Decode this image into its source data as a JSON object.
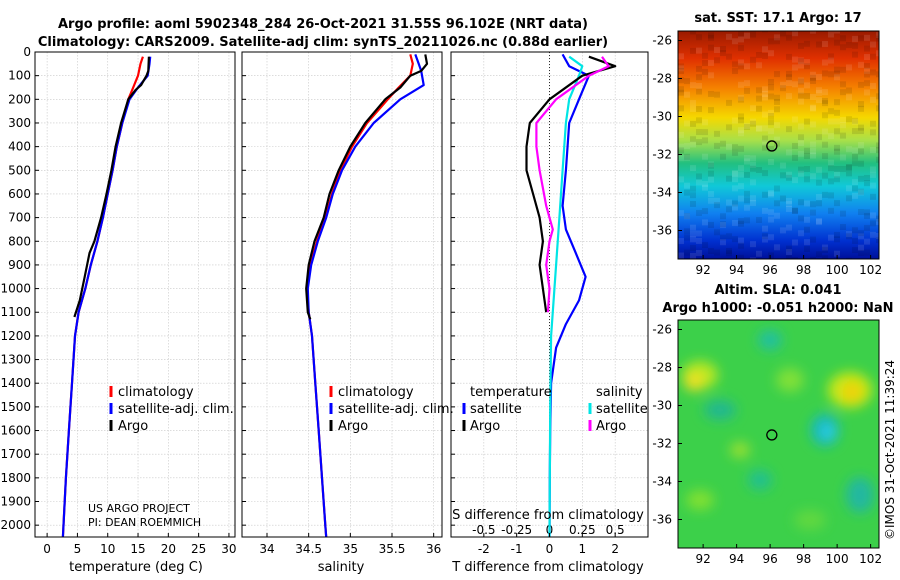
{
  "header": {
    "line1": "Argo profile: aoml 5902348_284 26-Oct-2021 31.55S 96.102E (NRT data)",
    "line2": "Climatology: CARS2009. Satellite-adj clim: synTS_20211026.nc (0.88d earlier)"
  },
  "colors": {
    "argo": "#000000",
    "climatology": "#ff0000",
    "satellite": "#0000ff",
    "salinity_sat": "#00e5e5",
    "salinity_argo": "#ff00ff",
    "grid": "#c8c8c8"
  },
  "credits": {
    "project": "US ARGO PROJECT",
    "pi": "PI: DEAN ROEMMICH"
  },
  "watermark": "©IMOS 31-Oct-2021 11:39:24",
  "chart_data": [
    {
      "id": "temperature",
      "type": "line",
      "xlabel": "temperature (deg C)",
      "xlim": [
        -2,
        31
      ],
      "xticks": [
        0,
        5,
        10,
        15,
        20,
        25,
        30
      ],
      "ylim": [
        2050,
        0
      ],
      "yticks": [
        0,
        100,
        200,
        300,
        400,
        500,
        600,
        700,
        800,
        900,
        1000,
        1100,
        1200,
        1300,
        1400,
        1500,
        1600,
        1700,
        1800,
        1900,
        2000
      ],
      "legend": [
        "climatology",
        "satellite-adj. clim.",
        "Argo"
      ],
      "series": [
        {
          "name": "climatology",
          "color": "#ff0000",
          "points": [
            [
              15.8,
              20
            ],
            [
              15.4,
              50
            ],
            [
              15.0,
              100
            ],
            [
              14.2,
              150
            ],
            [
              13.4,
              200
            ],
            [
              12.4,
              300
            ],
            [
              11.5,
              400
            ],
            [
              10.8,
              500
            ],
            [
              10.0,
              600
            ],
            [
              9.2,
              700
            ],
            [
              8.3,
              800
            ],
            [
              7.2,
              900
            ],
            [
              6.3,
              1000
            ],
            [
              5.2,
              1100
            ],
            [
              4.6,
              1200
            ],
            [
              4.1,
              1400
            ],
            [
              3.6,
              1600
            ],
            [
              3.1,
              1800
            ],
            [
              2.7,
              2000
            ],
            [
              2.6,
              2050
            ]
          ]
        },
        {
          "name": "satellite-adj. clim.",
          "color": "#0000ff",
          "points": [
            [
              17.0,
              20
            ],
            [
              16.9,
              50
            ],
            [
              16.6,
              100
            ],
            [
              15.0,
              150
            ],
            [
              13.6,
              200
            ],
            [
              12.4,
              300
            ],
            [
              11.5,
              400
            ],
            [
              10.8,
              500
            ],
            [
              10.0,
              600
            ],
            [
              9.2,
              700
            ],
            [
              8.3,
              800
            ],
            [
              7.2,
              900
            ],
            [
              6.3,
              1000
            ],
            [
              5.2,
              1100
            ],
            [
              4.6,
              1200
            ],
            [
              4.1,
              1400
            ],
            [
              3.6,
              1600
            ],
            [
              3.1,
              1800
            ],
            [
              2.7,
              2000
            ],
            [
              2.6,
              2050
            ]
          ]
        },
        {
          "name": "Argo",
          "color": "#000000",
          "points": [
            [
              16.8,
              20
            ],
            [
              16.7,
              80
            ],
            [
              16.4,
              100
            ],
            [
              15.5,
              140
            ],
            [
              14.6,
              160
            ],
            [
              13.4,
              200
            ],
            [
              12.2,
              300
            ],
            [
              11.3,
              400
            ],
            [
              10.6,
              500
            ],
            [
              9.8,
              600
            ],
            [
              8.9,
              700
            ],
            [
              7.8,
              800
            ],
            [
              7.0,
              850
            ],
            [
              6.2,
              950
            ],
            [
              5.4,
              1050
            ],
            [
              4.5,
              1120
            ]
          ]
        }
      ]
    },
    {
      "id": "salinity",
      "type": "line",
      "xlabel": "salinity",
      "xlim": [
        33.7,
        36.1
      ],
      "xticks": [
        34,
        34.5,
        35,
        35.5,
        36
      ],
      "ylim": [
        2050,
        0
      ],
      "legend": [
        "climatology",
        "satellite-adj. clim.",
        "Argo"
      ],
      "series": [
        {
          "name": "climatology",
          "color": "#ff0000",
          "points": [
            [
              35.72,
              10
            ],
            [
              35.75,
              50
            ],
            [
              35.72,
              100
            ],
            [
              35.58,
              150
            ],
            [
              35.45,
              200
            ],
            [
              35.2,
              300
            ],
            [
              35.02,
              400
            ],
            [
              34.88,
              500
            ],
            [
              34.78,
              600
            ],
            [
              34.7,
              700
            ],
            [
              34.6,
              800
            ],
            [
              34.52,
              900
            ],
            [
              34.48,
              1000
            ],
            [
              34.5,
              1100
            ],
            [
              34.54,
              1200
            ],
            [
              34.58,
              1400
            ],
            [
              34.62,
              1600
            ],
            [
              34.66,
              1800
            ],
            [
              34.7,
              2000
            ],
            [
              34.71,
              2050
            ]
          ]
        },
        {
          "name": "satellite-adj. clim.",
          "color": "#0000ff",
          "points": [
            [
              35.78,
              10
            ],
            [
              35.82,
              50
            ],
            [
              35.85,
              80
            ],
            [
              35.88,
              140
            ],
            [
              35.6,
              200
            ],
            [
              35.28,
              300
            ],
            [
              35.06,
              400
            ],
            [
              34.9,
              500
            ],
            [
              34.79,
              600
            ],
            [
              34.71,
              700
            ],
            [
              34.61,
              800
            ],
            [
              34.53,
              900
            ],
            [
              34.49,
              1000
            ],
            [
              34.5,
              1100
            ],
            [
              34.54,
              1200
            ],
            [
              34.58,
              1400
            ],
            [
              34.62,
              1600
            ],
            [
              34.66,
              1800
            ],
            [
              34.7,
              2000
            ],
            [
              34.71,
              2050
            ]
          ]
        },
        {
          "name": "Argo",
          "color": "#000000",
          "points": [
            [
              35.9,
              10
            ],
            [
              35.92,
              50
            ],
            [
              35.85,
              80
            ],
            [
              35.72,
              100
            ],
            [
              35.6,
              150
            ],
            [
              35.42,
              200
            ],
            [
              35.18,
              300
            ],
            [
              35.0,
              400
            ],
            [
              34.86,
              500
            ],
            [
              34.75,
              600
            ],
            [
              34.68,
              700
            ],
            [
              34.57,
              800
            ],
            [
              34.5,
              900
            ],
            [
              34.47,
              1000
            ],
            [
              34.49,
              1100
            ],
            [
              34.52,
              1130
            ]
          ]
        }
      ]
    },
    {
      "id": "difference",
      "type": "line",
      "xlabel": "T difference from climatology",
      "xlabel2": "S difference from climatology",
      "xlim": [
        -3,
        3
      ],
      "xticks": [
        -2,
        -1,
        0,
        1,
        2
      ],
      "xticks2": [
        -0.5,
        -0.25,
        0,
        0.25,
        0.5
      ],
      "ylim": [
        2050,
        0
      ],
      "legend_temperature": {
        "title": "temperature",
        "items": [
          "satellite",
          "Argo"
        ]
      },
      "legend_salinity": {
        "title": "salinity",
        "items": [
          "satellite",
          "Argo"
        ]
      },
      "series": [
        {
          "name": "T satellite",
          "color": "#0000ff",
          "points": [
            [
              0.4,
              10
            ],
            [
              0.6,
              60
            ],
            [
              1.2,
              100
            ],
            [
              0.9,
              200
            ],
            [
              0.6,
              300
            ],
            [
              0.5,
              500
            ],
            [
              0.4,
              650
            ],
            [
              0.5,
              750
            ],
            [
              0.8,
              850
            ],
            [
              1.1,
              950
            ],
            [
              0.9,
              1050
            ],
            [
              0.5,
              1150
            ],
            [
              0.2,
              1250
            ],
            [
              0.05,
              1400
            ],
            [
              0.02,
              1600
            ],
            [
              0.01,
              1800
            ],
            [
              0,
              2050
            ]
          ]
        },
        {
          "name": "S satellite",
          "color": "#00e5e5",
          "points": [
            [
              0.6,
              20
            ],
            [
              1.0,
              60
            ],
            [
              0.9,
              100
            ],
            [
              0.6,
              200
            ],
            [
              0.5,
              300
            ],
            [
              0.4,
              500
            ],
            [
              0.3,
              700
            ],
            [
              0.2,
              900
            ],
            [
              0.05,
              1200
            ],
            [
              0.02,
              1500
            ],
            [
              0,
              2050
            ]
          ]
        },
        {
          "name": "T Argo",
          "color": "#000000",
          "points": [
            [
              1.2,
              20
            ],
            [
              2.0,
              60
            ],
            [
              1.0,
              100
            ],
            [
              0.0,
              200
            ],
            [
              -0.6,
              300
            ],
            [
              -0.7,
              400
            ],
            [
              -0.7,
              500
            ],
            [
              -0.5,
              600
            ],
            [
              -0.3,
              700
            ],
            [
              -0.2,
              800
            ],
            [
              -0.3,
              900
            ],
            [
              -0.2,
              1000
            ],
            [
              -0.1,
              1100
            ]
          ]
        },
        {
          "name": "S Argo",
          "color": "#ff00ff",
          "points": [
            [
              1.6,
              20
            ],
            [
              1.8,
              60
            ],
            [
              1.2,
              100
            ],
            [
              0.2,
              200
            ],
            [
              -0.4,
              300
            ],
            [
              -0.4,
              400
            ],
            [
              -0.3,
              500
            ],
            [
              -0.1,
              650
            ],
            [
              0.1,
              750
            ],
            [
              0.0,
              800
            ],
            [
              -0.1,
              900
            ],
            [
              0.0,
              1000
            ],
            [
              -0.05,
              1100
            ]
          ]
        }
      ]
    },
    {
      "id": "sst-map",
      "type": "heatmap",
      "title": "sat. SST: 17.1 Argo: 17",
      "xticks": [
        92,
        94,
        96,
        98,
        100,
        102
      ],
      "yticks": [
        -26,
        -28,
        -30,
        -32,
        -34,
        -36
      ],
      "xlim": [
        90.5,
        102.5
      ],
      "ylim": [
        -37.5,
        -25.5
      ],
      "marker": {
        "lon": 96.102,
        "lat": -31.55
      }
    },
    {
      "id": "sla-map",
      "type": "heatmap",
      "title": "Altim. SLA: 0.041",
      "subtitle": "Argo h1000: -0.051 h2000: NaN",
      "xticks": [
        92,
        94,
        96,
        98,
        100,
        102
      ],
      "yticks": [
        -26,
        -28,
        -30,
        -32,
        -34,
        -36
      ],
      "xlim": [
        90.5,
        102.5
      ],
      "ylim": [
        -37.5,
        -25.5
      ],
      "marker": {
        "lon": 96.102,
        "lat": -31.55
      }
    }
  ]
}
